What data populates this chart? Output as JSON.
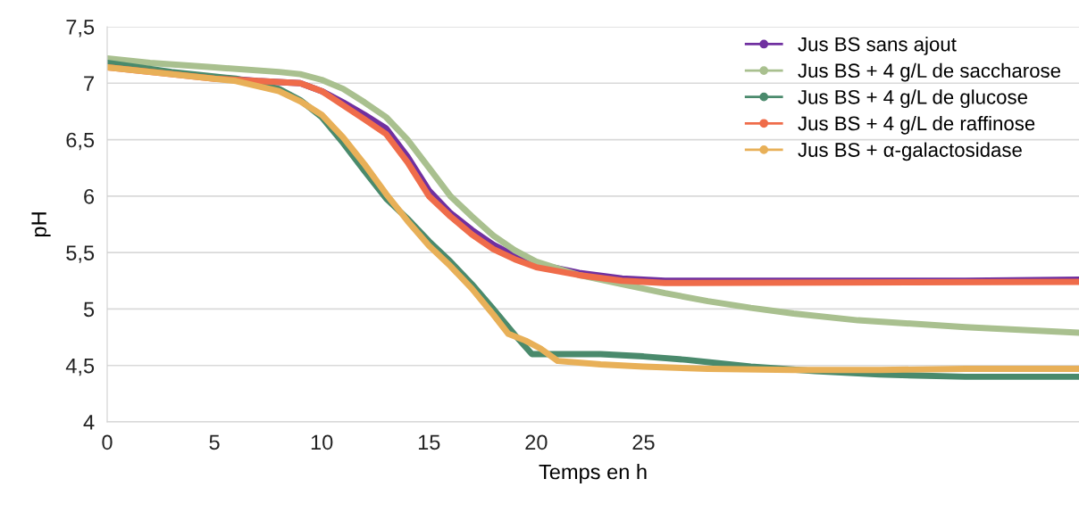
{
  "chart_data": {
    "type": "line",
    "xlabel": "Temps en h",
    "ylabel": "pH",
    "xlim": [
      0,
      45.3
    ],
    "xticks": [
      0,
      5,
      10,
      15,
      20,
      25
    ],
    "ylim": [
      4,
      7.5
    ],
    "yticks": [
      4,
      {
        "value": 4.5,
        "label": "4,5"
      },
      5,
      {
        "value": 5.5,
        "label": "5,5"
      },
      6,
      {
        "value": 6.5,
        "label": "6,5"
      },
      7,
      {
        "value": 7.5,
        "label": "7,5"
      }
    ],
    "grid": "y",
    "legend": "top right",
    "marker": "circle",
    "line_style": "solid",
    "series": [
      {
        "name": "Jus BS sans ajout",
        "color": "#7030a0",
        "x": [
          5,
          7,
          9,
          10,
          11,
          12,
          13,
          14,
          15,
          16,
          17,
          18,
          19,
          20,
          22,
          24,
          26,
          30,
          40,
          45.3
        ],
        "values": [
          7.05,
          7.02,
          7.0,
          6.93,
          6.83,
          6.72,
          6.6,
          6.35,
          6.05,
          5.85,
          5.7,
          5.57,
          5.47,
          5.4,
          5.32,
          5.27,
          5.25,
          5.25,
          5.25,
          5.26
        ]
      },
      {
        "name": "Jus BS + 4 g/L de saccharose",
        "color": "#a9c08f",
        "x": [
          0,
          2,
          5,
          8,
          9,
          10,
          11,
          12,
          13,
          14,
          15,
          16,
          17,
          18,
          19,
          20,
          22,
          24,
          26,
          28,
          30,
          32,
          35,
          40,
          45.3
        ],
        "values": [
          7.22,
          7.18,
          7.14,
          7.1,
          7.08,
          7.03,
          6.95,
          6.83,
          6.7,
          6.5,
          6.25,
          6.0,
          5.82,
          5.65,
          5.52,
          5.42,
          5.3,
          5.22,
          5.14,
          5.07,
          5.01,
          4.96,
          4.9,
          4.84,
          4.79
        ]
      },
      {
        "name": "Jus BS + 4 g/L de glucose",
        "color": "#4a8a6c",
        "x": [
          0,
          3,
          6,
          8,
          9,
          10,
          11,
          12,
          13,
          14,
          15,
          16,
          17,
          18,
          19,
          19.8,
          21,
          23,
          25,
          27,
          30,
          33,
          36,
          40,
          45.3
        ],
        "values": [
          7.18,
          7.1,
          7.04,
          6.95,
          6.85,
          6.7,
          6.47,
          6.22,
          5.98,
          5.8,
          5.6,
          5.42,
          5.22,
          5.0,
          4.77,
          4.6,
          4.6,
          4.6,
          4.58,
          4.55,
          4.49,
          4.45,
          4.42,
          4.4,
          4.4
        ]
      },
      {
        "name": "Jus BS + 4 g/L de raffinose",
        "color": "#ef6c4a",
        "x": [
          0,
          5,
          9,
          10,
          12,
          13,
          14,
          15,
          16,
          17,
          18,
          19,
          20,
          22,
          24,
          26,
          45.3
        ],
        "values": [
          7.14,
          7.04,
          7.0,
          6.93,
          6.68,
          6.55,
          6.3,
          6.0,
          5.82,
          5.66,
          5.53,
          5.44,
          5.37,
          5.3,
          5.25,
          5.23,
          5.24
        ]
      },
      {
        "name": "Jus BS + α-galactosidase",
        "color": "#e8b058",
        "x": [
          0,
          3,
          6,
          8,
          9,
          10,
          11,
          12,
          13,
          14,
          15,
          16,
          17,
          18,
          18.7,
          19.5,
          20.2,
          21,
          23,
          25,
          28,
          32,
          36,
          40,
          45.3
        ],
        "values": [
          7.14,
          7.08,
          7.02,
          6.93,
          6.84,
          6.72,
          6.52,
          6.28,
          6.02,
          5.78,
          5.56,
          5.38,
          5.18,
          4.95,
          4.78,
          4.72,
          4.65,
          4.54,
          4.51,
          4.49,
          4.47,
          4.46,
          4.46,
          4.47,
          4.47
        ]
      }
    ]
  }
}
